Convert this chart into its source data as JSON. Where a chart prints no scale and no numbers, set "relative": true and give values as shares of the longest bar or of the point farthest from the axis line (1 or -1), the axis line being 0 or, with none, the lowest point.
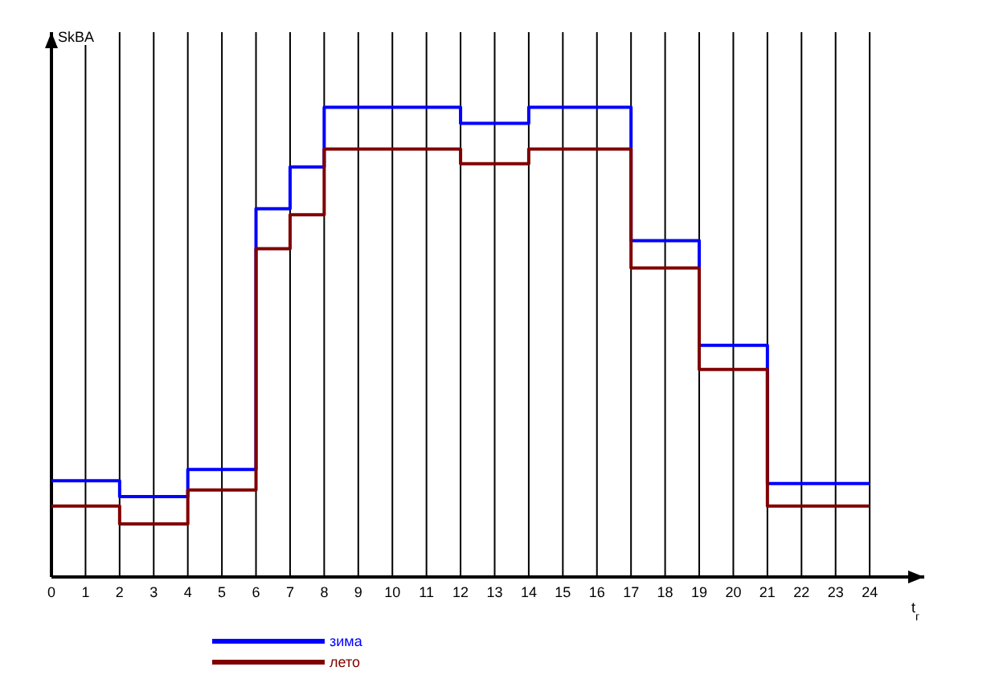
{
  "chart_data": {
    "type": "step",
    "relative": true,
    "xlabel": "t$_{г}$",
    "ylabel": "SkBA",
    "x": [
      0,
      2,
      4,
      6,
      7,
      8,
      12,
      14,
      17,
      19,
      21,
      24
    ],
    "xlim": [
      0,
      25.6
    ],
    "xticks": [
      0,
      1,
      2,
      3,
      4,
      5,
      6,
      7,
      8,
      9,
      10,
      11,
      12,
      13,
      14,
      15,
      16,
      17,
      18,
      19,
      20,
      21,
      22,
      23,
      24
    ],
    "grid": "x",
    "legend": "bottom",
    "series": [
      {
        "name": "зима",
        "color": "#0000ff",
        "values": [
          0.205,
          0.171,
          0.229,
          0.784,
          0.873,
          1,
          0.966,
          1,
          0.716,
          0.493,
          0.199,
          0.199
        ]
      },
      {
        "name": "лето",
        "color": "#800000",
        "values": [
          0.151,
          0.113,
          0.185,
          0.699,
          0.771,
          0.911,
          0.88,
          0.911,
          0.658,
          0.442,
          0.151,
          0.151
        ]
      }
    ]
  }
}
